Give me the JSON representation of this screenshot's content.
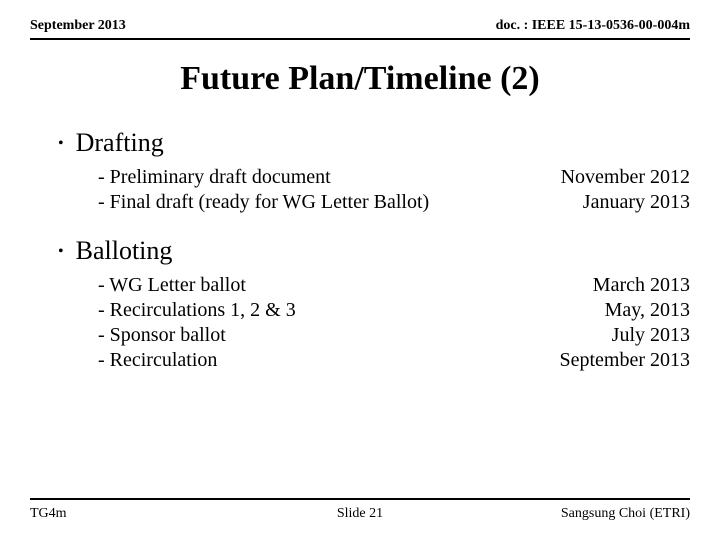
{
  "header": {
    "left": "September 2013",
    "right": "doc. : IEEE 15-13-0536-00-004m"
  },
  "title": "Future Plan/Timeline (2)",
  "sections": [
    {
      "heading": "Drafting",
      "items": [
        {
          "label": "- Preliminary draft document",
          "date": "November 2012"
        },
        {
          "label": "- Final draft (ready for WG Letter Ballot)",
          "date": "January  2013"
        }
      ]
    },
    {
      "heading": "Balloting",
      "items": [
        {
          "label": "- WG Letter ballot",
          "date": "March 2013"
        },
        {
          "label": "- Recirculations 1, 2 & 3",
          "date": "May, 2013"
        },
        {
          "label": "- Sponsor ballot",
          "date": "July 2013"
        },
        {
          "label": "- Recirculation",
          "date": "September 2013"
        }
      ]
    }
  ],
  "footer": {
    "left": "TG4m",
    "center": "Slide 21",
    "right": "Sangsung Choi (ETRI)"
  }
}
